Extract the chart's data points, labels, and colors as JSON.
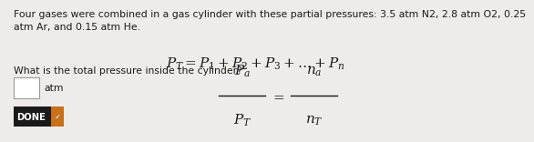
{
  "bg_color": "#eeece8",
  "text_color": "#1a1a1a",
  "title_text": "Four gases were combined in a gas cylinder with these partial pressures: 3.5 atm N2, 2.8 atm O2, 0.25\natm Ar, and 0.15 atm He.",
  "question_text": "What is the total pressure inside the cylinder?",
  "answer_unit": "atm",
  "done_label": "DONE",
  "formula1": "$P_T = P_1 + P_2 + P_3 + ... + P_n$",
  "frac_num_left": "$P_a$",
  "frac_den_left": "$P_T$",
  "frac_num_right": "$n_a$",
  "frac_den_right": "$n_T$",
  "done_bg": "#1a1a1a",
  "done_arrow_bg": "#c8701a"
}
